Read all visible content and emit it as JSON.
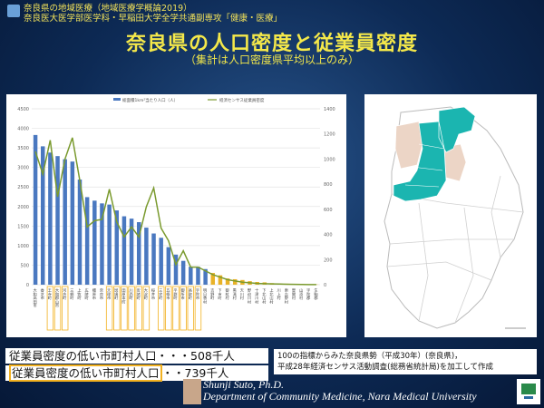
{
  "header": {
    "line1": "奈良県の地域医療（地域医療学概論2019）",
    "line2": "奈良医大医学部医学科・早稲田大学全学共通副専攻「健康・医療」"
  },
  "title": "奈良県の人口密度と従業員密度",
  "subtitle": "（集計は人口密度県平均以上のみ）",
  "notes": {
    "line1": "従業員密度の低い市町村人口・・・508千人",
    "line2_highlight": "従業員密度の低い市町村人口",
    "line2_rest": "・・739千人"
  },
  "source": {
    "line1": "100の指標からみた奈良県勢（平成30年）(奈良県)，",
    "line2": "平成28年経済センサス活動調査(総務省統計局)を加工して作成"
  },
  "footer": {
    "name": "Shunji Suto, Ph.D.",
    "dept": "Department of Community Medicine, Nara Medical University"
  },
  "icons": {
    "header": "slide-icon",
    "photo": "author-photo",
    "logo": "university-logo-icon"
  },
  "chart_data": {
    "type": "bar",
    "legend": [
      "総面積1km²当たり人口（人）",
      "経済センサス従業員密度"
    ],
    "legend_position": "top",
    "categories": [
      "大和高田市",
      "香芝市",
      "王寺町",
      "大和郡山市",
      "河合町",
      "三郷町",
      "上牧町",
      "広陵町",
      "橿原市",
      "奈良市",
      "天理市",
      "斑鳩町",
      "田原本町",
      "川西町",
      "安堵町",
      "大淀町",
      "桜井市",
      "三宅町",
      "五條市",
      "平群町",
      "御所市",
      "高取町",
      "宇陀市",
      "明日香村",
      "吉野町",
      "下市町",
      "御杖村",
      "黒滝村",
      "天川村",
      "野迫川村",
      "十津川村",
      "下北山村",
      "上北山村",
      "川上村",
      "東吉野村",
      "曽爾村",
      "山添村",
      "宇陀郡",
      "生駒郡"
    ],
    "series": [
      {
        "name": "総面積1km²当たり人口（人）",
        "axis": "left",
        "color": "#4a78c0",
        "values": [
          3830,
          3540,
          3380,
          3290,
          3210,
          3150,
          2690,
          2240,
          2150,
          2080,
          2050,
          1900,
          1750,
          1690,
          1600,
          1460,
          1310,
          1200,
          960,
          770,
          610,
          460,
          460,
          400,
          300,
          240,
          160,
          140,
          120,
          90,
          70,
          60,
          40,
          30,
          25,
          20,
          15,
          10,
          5
        ]
      },
      {
        "name": "経済センサス従業員密度",
        "axis": "right",
        "color": "#7a9a2e",
        "values": [
          1060,
          880,
          1150,
          700,
          1000,
          1170,
          830,
          460,
          510,
          520,
          760,
          500,
          380,
          460,
          380,
          620,
          770,
          450,
          350,
          160,
          270,
          140,
          140,
          110,
          80,
          60,
          40,
          30,
          20,
          15,
          10,
          8,
          6,
          5,
          4,
          3,
          2,
          1,
          1
        ]
      }
    ],
    "highlighted": [
      "王寺町",
      "大和郡山市",
      "河合町",
      "天理市",
      "斑鳩町",
      "田原本町",
      "川西町",
      "安堵町",
      "大淀町",
      "三宅町",
      "五條市",
      "平群町",
      "御所市",
      "高取町",
      "宇陀市"
    ],
    "yLeft": {
      "min": 0,
      "max": 4500,
      "step": 500
    },
    "yRight": {
      "min": 0,
      "max": 1400,
      "step": 200
    },
    "colors": {
      "bar": "#4a78c0",
      "bar_after": "#e8b228",
      "line": "#7a9a2e",
      "highlight": "#f2b120"
    }
  }
}
